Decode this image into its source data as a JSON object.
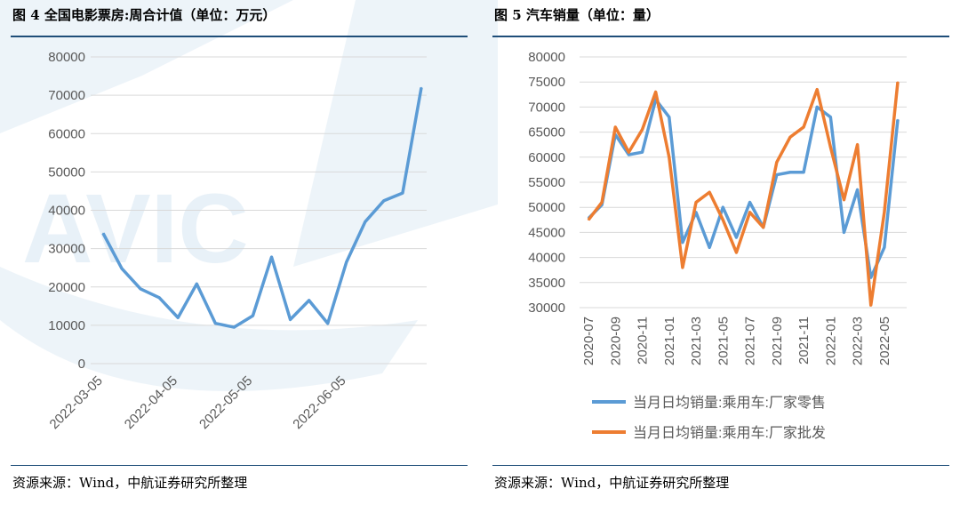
{
  "watermark": {
    "text": "AVIC",
    "color": "#4a90c8"
  },
  "left_panel": {
    "title": "图 4  全国电影票房:周合计值（单位：万元）",
    "source": "资源来源：Wind，中航证券研究所整理"
  },
  "right_panel": {
    "title": "图 5  汽车销量（单位：量）",
    "source": "资源来源：Wind，中航证券研究所整理"
  },
  "chart_data": [
    {
      "type": "line",
      "title": "全国电影票房:周合计值（单位：万元）",
      "ylim": [
        0,
        80000
      ],
      "y_ticks": [
        "0",
        "10000",
        "20000",
        "30000",
        "40000",
        "50000",
        "60000",
        "70000",
        "80000"
      ],
      "x_tick_labels": [
        "2022-03-05",
        "2022-04-05",
        "2022-05-05",
        "2022-06-05"
      ],
      "x_tick_index": [
        0,
        4,
        8,
        13
      ],
      "grid": true,
      "legend": "none",
      "series": [
        {
          "color": "#5b9bd5",
          "values": [
            34000,
            24800,
            19500,
            17200,
            12000,
            20800,
            10500,
            9500,
            12500,
            27800,
            11500,
            16500,
            10500,
            26500,
            37000,
            42500,
            44500,
            72000
          ]
        }
      ]
    },
    {
      "type": "line",
      "title": "汽车销量（单位：量）",
      "ylim": [
        30000,
        80000
      ],
      "y_ticks": [
        "30000",
        "35000",
        "40000",
        "45000",
        "50000",
        "55000",
        "60000",
        "65000",
        "70000",
        "75000",
        "80000"
      ],
      "x_tick_labels": [
        "2020-07",
        "2020-09",
        "2020-11",
        "2021-01",
        "2021-03",
        "2021-05",
        "2021-07",
        "2021-09",
        "2021-11",
        "2022-01",
        "2022-03",
        "2022-05"
      ],
      "grid": true,
      "legend": "bottom",
      "series": [
        {
          "name": "当月日均销量:乘用车:厂家零售",
          "color": "#5b9bd5",
          "values": [
            47800,
            50500,
            64500,
            60500,
            61000,
            71500,
            68000,
            43000,
            49000,
            42000,
            50000,
            44000,
            51000,
            46000,
            56500,
            57000,
            57000,
            70000,
            68000,
            45000,
            53500,
            36000,
            42000,
            67500
          ]
        },
        {
          "name": "当月日均销量:乘用车:厂家批发",
          "color": "#ed7d31",
          "values": [
            47500,
            51000,
            66000,
            61000,
            65500,
            73000,
            60000,
            38000,
            51000,
            53000,
            47500,
            41000,
            49000,
            46000,
            59000,
            64000,
            66000,
            73500,
            62000,
            51500,
            62500,
            30500,
            49000,
            75000
          ]
        }
      ]
    }
  ]
}
